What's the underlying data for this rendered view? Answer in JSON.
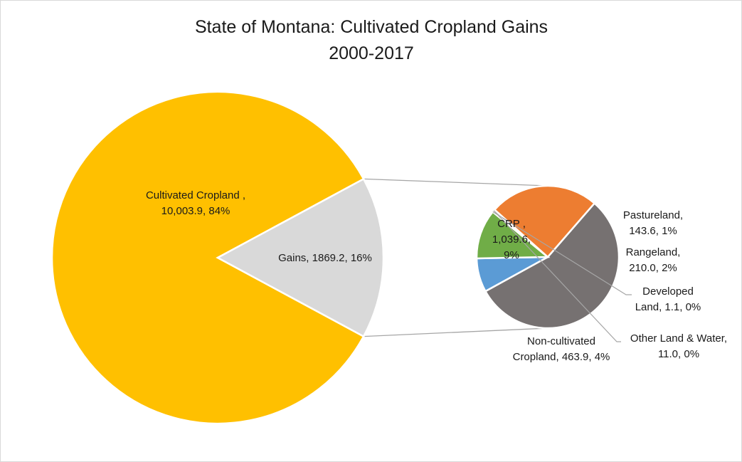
{
  "chart_data": {
    "type": "pie",
    "subtype": "bar-of-pie",
    "title_line1": "State of Montana: Cultivated Cropland Gains",
    "title_line2": "2000-2017",
    "main_pie": [
      {
        "name": "Cultivated Cropland",
        "value": 10003.9,
        "percent": "84%",
        "color": "#FFC000",
        "label_lines": [
          "Cultivated Cropland ,",
          "10,003.9, 84%"
        ]
      },
      {
        "name": "Gains",
        "value": 1869.2,
        "percent": "16%",
        "color": "#D9D9D9",
        "label_lines": [
          "Gains, 1869.2, 16%"
        ]
      }
    ],
    "secondary_pie": [
      {
        "name": "CRP",
        "value": 1039.6,
        "percent": "9%",
        "color": "#767171",
        "label_lines": [
          "CRP ,",
          "1,039.6,",
          "9%"
        ]
      },
      {
        "name": "Pastureland",
        "value": 143.6,
        "percent": "1%",
        "color": "#5B9BD5",
        "label_lines": [
          "Pastureland,",
          "143.6, 1%"
        ]
      },
      {
        "name": "Rangeland",
        "value": 210.0,
        "percent": "2%",
        "color": "#70AD47",
        "label_lines": [
          "Rangeland,",
          "210.0, 2%"
        ]
      },
      {
        "name": "Developed Land",
        "value": 1.1,
        "percent": "0%",
        "color": "#4472C4",
        "label_lines": [
          "Developed",
          "Land, 1.1, 0%"
        ]
      },
      {
        "name": "Other Land & Water",
        "value": 11.0,
        "percent": "0%",
        "color": "#A5A5A5",
        "label_lines": [
          "Other Land & Water,",
          "11.0, 0%"
        ]
      },
      {
        "name": "Non-cultivated Cropland",
        "value": 463.9,
        "percent": "4%",
        "color": "#ED7D31",
        "label_lines": [
          "Non-cultivated",
          "Cropland, 463.9, 4%"
        ]
      }
    ],
    "legend": "none"
  }
}
